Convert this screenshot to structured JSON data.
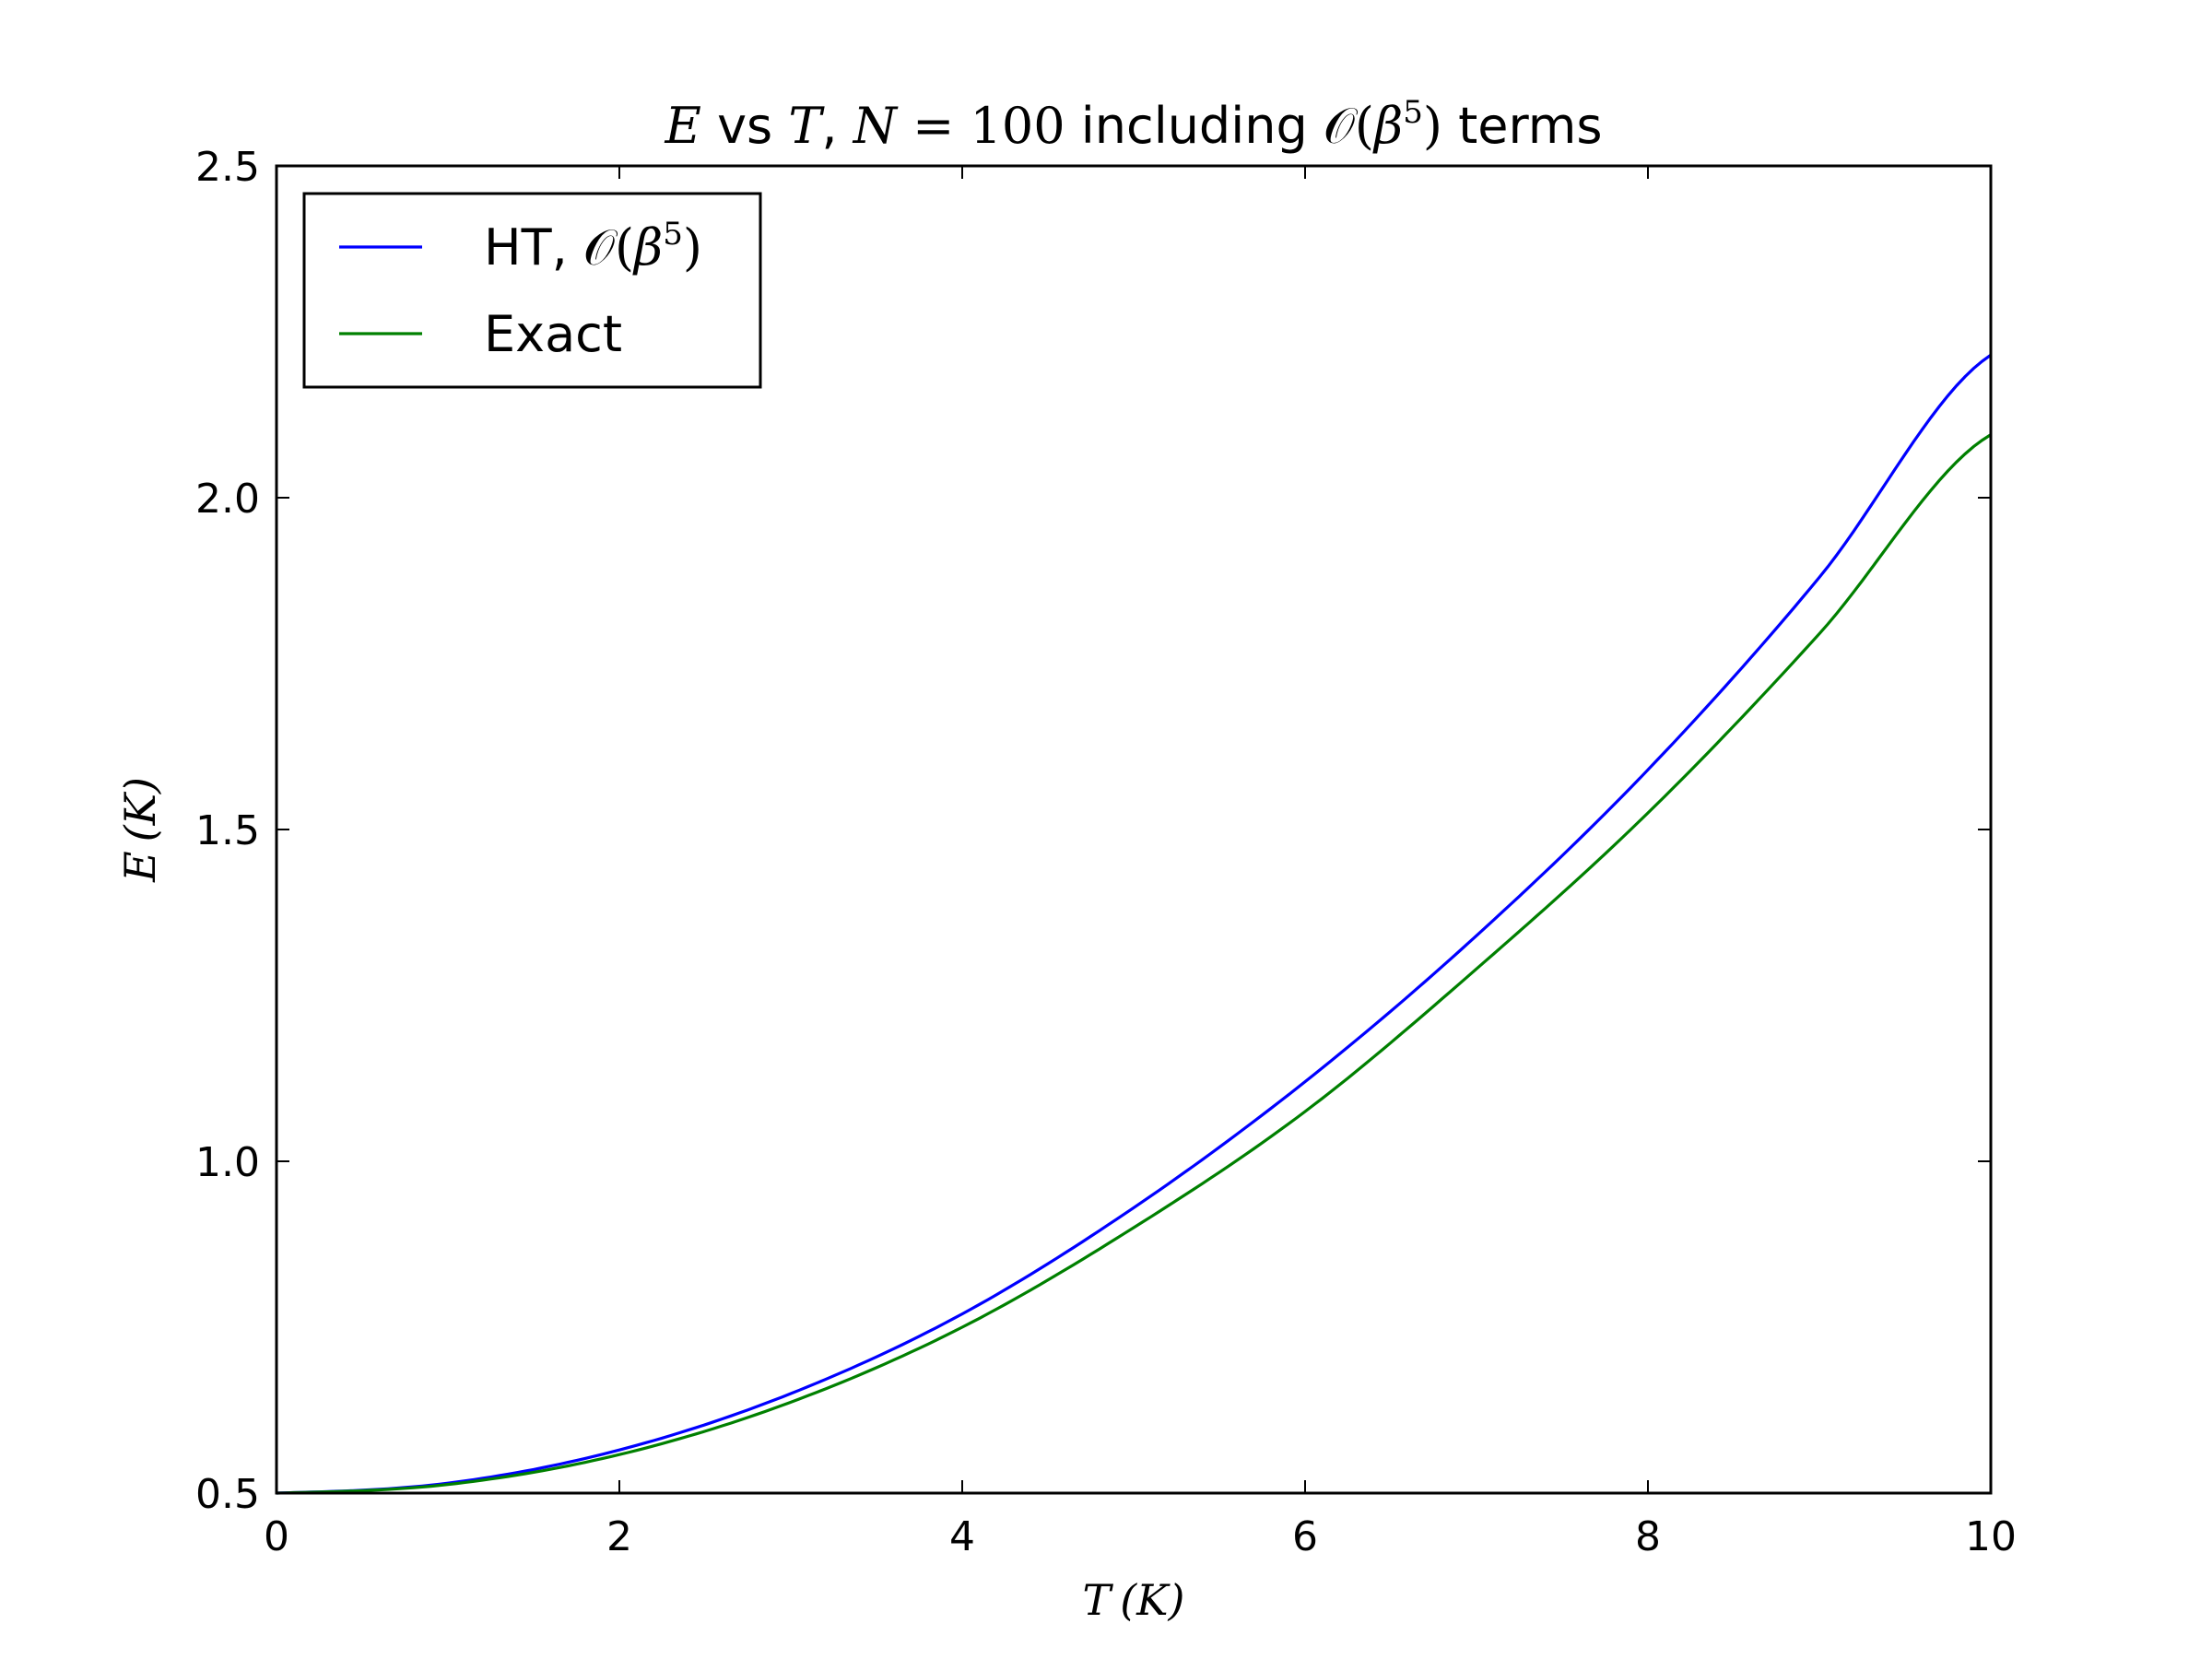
{
  "chart_data": {
    "type": "line",
    "title": {
      "E": "E",
      "vs": " vs ",
      "T": "T",
      "comma": ", ",
      "N": "N",
      "eq": " = ",
      "n_value": "100",
      "including": " including ",
      "O": "𝒪",
      "lparen": "(",
      "beta": "β",
      "exp": "5",
      "rparen": ")",
      "terms": " terms"
    },
    "xlabel": {
      "var": "T",
      "unit": "(K)"
    },
    "ylabel": {
      "var": "E",
      "unit": "(K)"
    },
    "xlim": [
      0,
      10
    ],
    "ylim": [
      0.5,
      2.5
    ],
    "xticks": [
      0,
      2,
      4,
      6,
      8,
      10
    ],
    "xtick_labels": [
      "0",
      "2",
      "4",
      "6",
      "8",
      "10"
    ],
    "yticks": [
      0.5,
      1.0,
      1.5,
      2.0,
      2.5
    ],
    "ytick_labels": [
      "0.5",
      "1.0",
      "1.5",
      "2.0",
      "2.5"
    ],
    "grid": false,
    "legend_position": "top-left",
    "x": [
      0,
      1,
      2,
      3,
      4,
      5,
      6,
      7,
      8,
      9,
      10
    ],
    "series": [
      {
        "name_text": "HT, ",
        "name_math": {
          "O": "𝒪",
          "lparen": "(",
          "beta": "β",
          "exp": "5",
          "rparen": ")"
        },
        "color": "#0000ff",
        "values": [
          0.5,
          0.515,
          0.565,
          0.65,
          0.77,
          0.93,
          1.12,
          1.34,
          1.59,
          1.88,
          2.215
        ]
      },
      {
        "name_text": "Exact",
        "color": "#008000",
        "values": [
          0.5,
          0.513,
          0.558,
          0.637,
          0.75,
          0.9,
          1.075,
          1.29,
          1.525,
          1.795,
          2.095
        ]
      }
    ]
  }
}
